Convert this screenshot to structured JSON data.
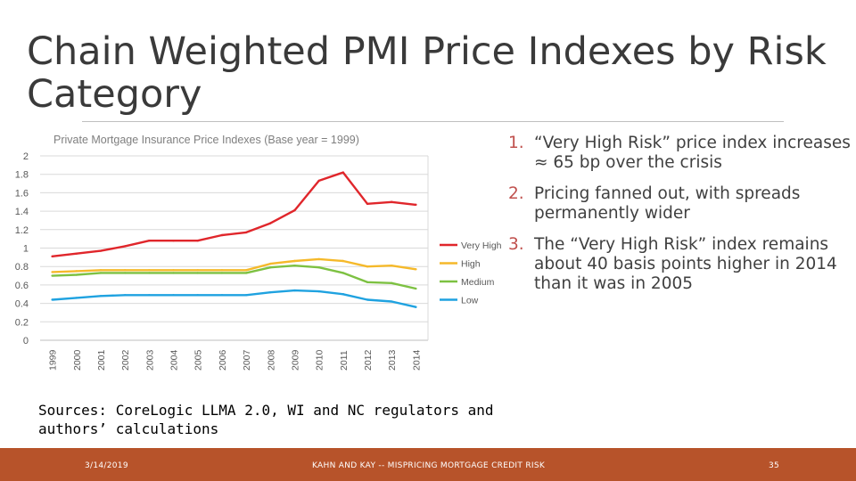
{
  "slide": {
    "title": "Chain Weighted PMI Price Indexes by Risk Category",
    "sources": "Sources: CoreLogic LLMA 2.0, WI and NC regulators and authors’ calculations"
  },
  "bullets": [
    {
      "number": "1.",
      "text": "“Very High Risk” price index increases ≈ 65 bp over the crisis"
    },
    {
      "number": "2.",
      "text": "Pricing fanned out, with spreads permanently wider"
    },
    {
      "number": "3.",
      "text": "The “Very High Risk” index remains about 40 basis points higher in 2014 than it was in 2005"
    }
  ],
  "footer": {
    "date": "3/14/2019",
    "center": "KAHN AND KAY -- MISPRICING MORTGAGE CREDIT RISK",
    "page": "35"
  },
  "colors": {
    "accent": "#b7532a",
    "very_high": "#e0262b",
    "high": "#f5b92a",
    "medium": "#7dc142",
    "low": "#1fa2e0"
  },
  "chart_data": {
    "type": "line",
    "title": "Private Mortgage Insurance Price Indexes (Base year = 1999)",
    "xlabel": "",
    "ylabel": "",
    "x": [
      "1999",
      "2000",
      "2001",
      "2002",
      "2003",
      "2004",
      "2005",
      "2006",
      "2007",
      "2008",
      "2009",
      "2010",
      "2011",
      "2012",
      "2013",
      "2014"
    ],
    "ylim": [
      0,
      2
    ],
    "yticks": [
      "0",
      "0.2",
      "0.4",
      "0.6",
      "0.8",
      "1",
      "1.2",
      "1.4",
      "1.6",
      "1.8",
      "2"
    ],
    "grid": true,
    "legend": "right",
    "series": [
      {
        "name": "Very High",
        "color": "#e0262b",
        "values": [
          0.91,
          0.94,
          0.97,
          1.02,
          1.08,
          1.08,
          1.08,
          1.14,
          1.17,
          1.27,
          1.41,
          1.73,
          1.82,
          1.48,
          1.5,
          1.47
        ]
      },
      {
        "name": "High",
        "color": "#f5b92a",
        "values": [
          0.74,
          0.75,
          0.76,
          0.76,
          0.76,
          0.76,
          0.76,
          0.76,
          0.76,
          0.83,
          0.86,
          0.88,
          0.86,
          0.8,
          0.81,
          0.77
        ]
      },
      {
        "name": "Medium",
        "color": "#7dc142",
        "values": [
          0.7,
          0.71,
          0.73,
          0.73,
          0.73,
          0.73,
          0.73,
          0.73,
          0.73,
          0.79,
          0.81,
          0.79,
          0.73,
          0.63,
          0.62,
          0.56
        ]
      },
      {
        "name": "Low",
        "color": "#1fa2e0",
        "values": [
          0.44,
          0.46,
          0.48,
          0.49,
          0.49,
          0.49,
          0.49,
          0.49,
          0.49,
          0.52,
          0.54,
          0.53,
          0.5,
          0.44,
          0.42,
          0.36
        ]
      }
    ]
  }
}
